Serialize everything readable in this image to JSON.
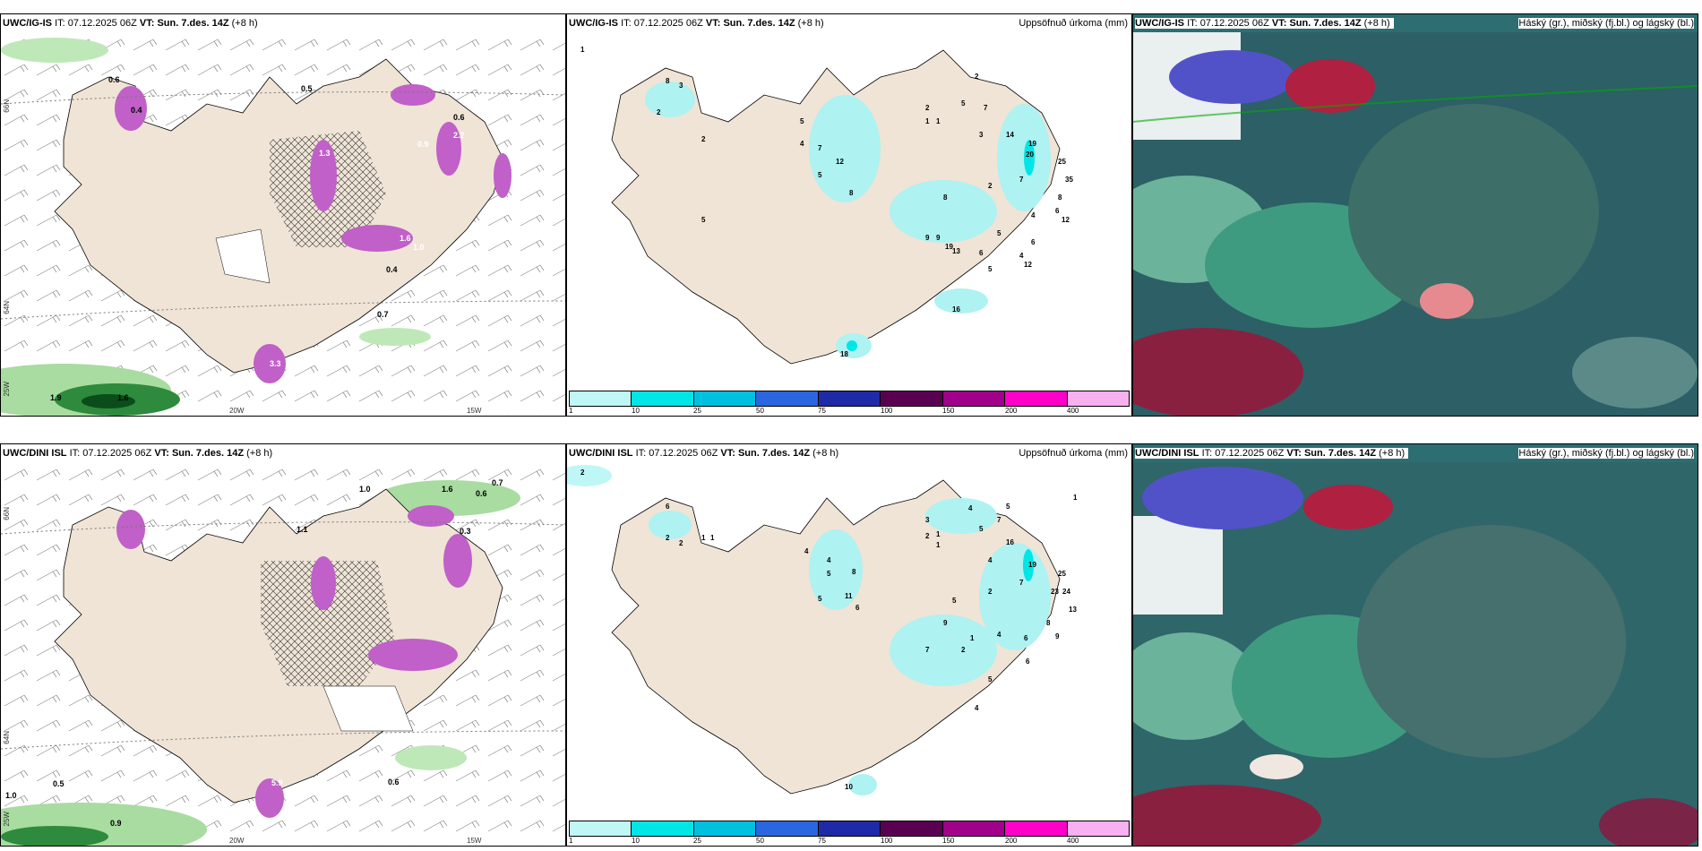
{
  "panels": [
    {
      "header_model": "UWC/IG-IS",
      "header_it_label": "IT:",
      "header_it_value": "07.12.2025 06Z",
      "header_vt_label": "VT:",
      "header_vt_value": "Sun. 7.des. 14Z",
      "header_lead": "(+8 h)",
      "title_right": ""
    },
    {
      "header_model": "UWC/IG-IS",
      "header_it_label": "IT:",
      "header_it_value": "07.12.2025 06Z",
      "header_vt_label": "VT:",
      "header_vt_value": "Sun. 7.des. 14Z",
      "header_lead": "(+8 h)",
      "title_right": "Uppsöfnuð úrkoma (mm)"
    },
    {
      "header_model": "UWC/IG-IS",
      "header_it_label": "IT:",
      "header_it_value": "07.12.2025 06Z",
      "header_vt_label": "VT:",
      "header_vt_value": "Sun. 7.des. 14Z",
      "header_lead": "(+8 h)",
      "title_right": "Háský (gr.), miðský (fj.bl.) og lágský (bl.)"
    },
    {
      "header_model": "UWC/DINI ISL",
      "header_it_label": "IT:",
      "header_it_value": "07.12.2025 06Z",
      "header_vt_label": "VT:",
      "header_vt_value": "Sun. 7.des. 14Z",
      "header_lead": "(+8 h)",
      "title_right": ""
    },
    {
      "header_model": "UWC/DINI ISL",
      "header_it_label": "IT:",
      "header_it_value": "07.12.2025 06Z",
      "header_vt_label": "VT:",
      "header_vt_value": "Sun. 7.des. 14Z",
      "header_lead": "(+8 h)",
      "title_right": "Uppsöfnuð úrkoma (mm)"
    },
    {
      "header_model": "UWC/DINI ISL",
      "header_it_label": "IT:",
      "header_it_value": "07.12.2025 06Z",
      "header_vt_label": "VT:",
      "header_vt_value": "Sun. 7.des. 14Z",
      "header_lead": "(+8 h)",
      "title_right": "Háský (gr.), miðský (fj.bl.) og lágský (bl.)"
    }
  ],
  "axis_ticks": {
    "lat_66": "66N",
    "lat_64": "64N",
    "lon_20": "20W",
    "lon_15": "15W",
    "lon_25": "25W"
  },
  "colorbar": {
    "ticks": [
      "1",
      "10",
      "25",
      "50",
      "75",
      "100",
      "150",
      "200",
      "400"
    ],
    "colors": [
      "#bff7f7",
      "#00e5e5",
      "#00c0e0",
      "#2a66e0",
      "#1f2aa8",
      "#5a0050",
      "#a0008a",
      "#ff00c8",
      "#f7b0f0"
    ]
  },
  "precip_labels_top": {
    "values": [
      "0.6",
      "0.5",
      "0.4",
      "1.3",
      "2.2",
      "0.9",
      "0.6",
      "1.6",
      "1.0",
      "0.4",
      "3.3",
      "1.9",
      "1.6",
      "0.7"
    ]
  },
  "precip_labels_bottom": {
    "values": [
      "1.0",
      "0.5",
      "0.9",
      "0.6",
      "1.6",
      "0.7",
      "0.6",
      "1.1",
      "0.3",
      "5.9",
      "1.0"
    ]
  },
  "accum_top": {
    "values": [
      "1",
      "8",
      "3",
      "2",
      "2",
      "5",
      "4",
      "7",
      "12",
      "5",
      "8",
      "8",
      "2",
      "1",
      "1",
      "2",
      "5",
      "7",
      "3",
      "14",
      "19",
      "20",
      "25",
      "35",
      "7",
      "2",
      "6",
      "8",
      "12",
      "4",
      "6",
      "5",
      "4",
      "9",
      "9",
      "19",
      "6",
      "5",
      "12",
      "13",
      "16",
      "5",
      "18"
    ]
  },
  "accum_bottom": {
    "values": [
      "2",
      "6",
      "2",
      "2",
      "1",
      "1",
      "4",
      "4",
      "5",
      "8",
      "5",
      "11",
      "6",
      "3",
      "2",
      "1",
      "1",
      "4",
      "7",
      "5",
      "5",
      "16",
      "19",
      "25",
      "23",
      "24",
      "13",
      "4",
      "7",
      "2",
      "5",
      "9",
      "1",
      "4",
      "8",
      "6",
      "9",
      "7",
      "5",
      "6",
      "4",
      "10",
      "2",
      "1"
    ]
  }
}
